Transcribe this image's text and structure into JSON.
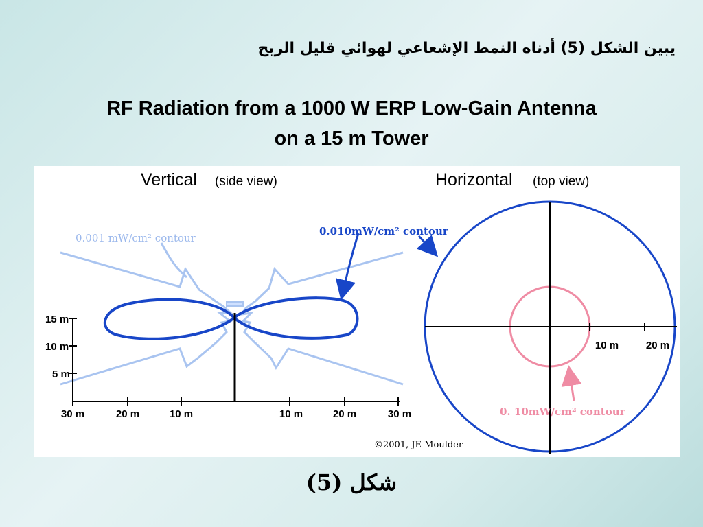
{
  "slide": {
    "arabic_heading": "يبين الشكل (5) أدناه النمط الإشعاعي لهوائي قليل الربح",
    "title_line1": "RF Radiation from a 1000 W ERP Low-Gain Antenna",
    "title_line2": "on a 15 m Tower",
    "caption": "شكل (5)"
  },
  "figure": {
    "vertical_title": "Vertical",
    "vertical_subtitle": "(side view)",
    "horizontal_title": "Horizontal",
    "horizontal_subtitle": "(top view)",
    "contour_outer_label": "0.001 mW/cm² contour",
    "contour_middle_label": "0.010mW/cm² contour",
    "contour_inner_label": "0. 10mW/cm² contour",
    "height_ticks": [
      "15 m",
      "10 m",
      "5 m"
    ],
    "distance_ticks": [
      "30 m",
      "20 m",
      "10 m",
      "10 m",
      "20 m",
      "30 m"
    ],
    "horizontal_ticks": [
      "10 m",
      "20 m"
    ],
    "copyright": "©2001, JE Moulder",
    "colors": {
      "outer_contour": "#a9c4f0",
      "middle_contour": "#1846c8",
      "inner_contour": "#ef8ca4",
      "axis": "#000000"
    }
  }
}
